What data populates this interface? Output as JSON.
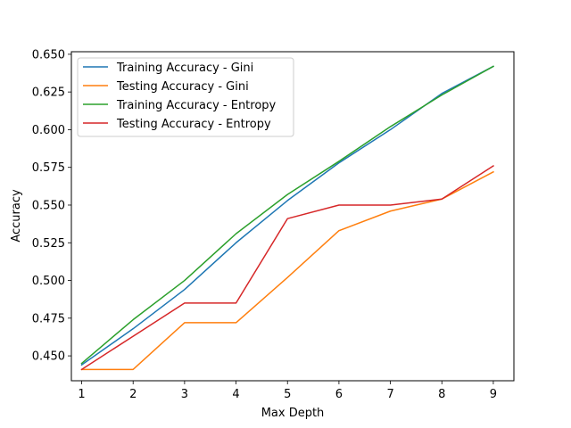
{
  "chart_data": {
    "type": "line",
    "xlabel": "Max Depth",
    "ylabel": "Accuracy",
    "x": [
      1,
      2,
      3,
      4,
      5,
      6,
      7,
      8,
      9
    ],
    "xlim": [
      0.8,
      9.4
    ],
    "ylim": [
      0.4335,
      0.6517
    ],
    "xticks": [
      1,
      2,
      3,
      4,
      5,
      6,
      7,
      8,
      9
    ],
    "yticks": [
      0.45,
      0.475,
      0.5,
      0.525,
      0.55,
      0.575,
      0.6,
      0.625,
      0.65
    ],
    "ytick_labels": [
      "0.450",
      "0.475",
      "0.500",
      "0.525",
      "0.550",
      "0.575",
      "0.600",
      "0.625",
      "0.650"
    ],
    "grid": false,
    "legend_position": "top-left",
    "series": [
      {
        "name": "Training Accuracy - Gini",
        "color": "#1f77b4",
        "values": [
          0.444,
          0.468,
          0.494,
          0.525,
          0.553,
          0.578,
          0.6,
          0.624,
          0.642
        ]
      },
      {
        "name": "Testing Accuracy - Gini",
        "color": "#ff7f0e",
        "values": [
          0.441,
          0.441,
          0.472,
          0.472,
          0.502,
          0.533,
          0.546,
          0.554,
          0.572
        ]
      },
      {
        "name": "Training Accuracy - Entropy",
        "color": "#2ca02c",
        "values": [
          0.445,
          0.474,
          0.5,
          0.531,
          0.557,
          0.579,
          0.602,
          0.623,
          0.642
        ]
      },
      {
        "name": "Testing Accuracy - Entropy",
        "color": "#d62728",
        "values": [
          0.441,
          0.463,
          0.485,
          0.485,
          0.541,
          0.55,
          0.55,
          0.554,
          0.576
        ]
      }
    ]
  }
}
